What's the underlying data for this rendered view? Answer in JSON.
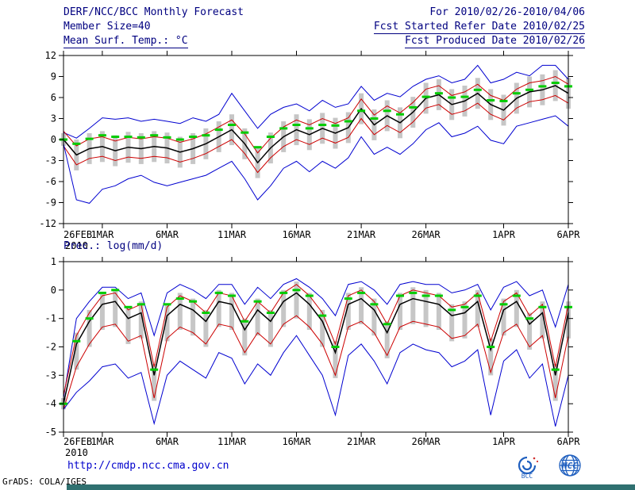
{
  "header": {
    "title": "DERF/NCC/BCC Monthly Forecast",
    "member_size": "Member Size=40",
    "variable_label": "Mean Surf. Temp.: °C",
    "for_range": "For 2010/02/26-2010/04/06",
    "refer_date": "Fcst Started Refer Date 2010/02/25",
    "produced_date": "Fcst Produced Date 2010/02/26"
  },
  "footer": {
    "url": "http://cmdp.ncc.cma.gov.cn",
    "grads_credit": "GrADS: COLA/IGES",
    "logos": [
      "BCC",
      "NCC"
    ]
  },
  "colors": {
    "header_text": "#000080",
    "axis": "#000000",
    "envelope_blue": "#0000d0",
    "band_red": "#cc0000",
    "mean_black": "#000000",
    "reference_green": "#00cc00",
    "bars_gray": "#c6c6c6",
    "url_blue": "#0000cc",
    "strip_teal": "#2f7070",
    "logo_blue": "#1f5fbf"
  },
  "chart_data": [
    {
      "type": "line",
      "title": "Mean Surf. Temp.: °C",
      "ylim": [
        -12,
        12
      ],
      "yticks": [
        -12,
        -9,
        -6,
        -3,
        0,
        3,
        6,
        9,
        12
      ],
      "x_tick_labels": [
        "26FEB",
        "1MAR",
        "6MAR",
        "11MAR",
        "16MAR",
        "21MAR",
        "26MAR",
        "1APR",
        "6APR"
      ],
      "x_tick_indices": [
        0,
        3,
        8,
        13,
        18,
        23,
        28,
        34,
        39
      ],
      "x_year_label": "2010",
      "grid": false,
      "legend": "none",
      "categories": [
        "26FEB",
        "27FEB",
        "28FEB",
        "1MAR",
        "2MAR",
        "3MAR",
        "4MAR",
        "5MAR",
        "6MAR",
        "7MAR",
        "8MAR",
        "9MAR",
        "10MAR",
        "11MAR",
        "12MAR",
        "13MAR",
        "14MAR",
        "15MAR",
        "16MAR",
        "17MAR",
        "18MAR",
        "19MAR",
        "20MAR",
        "21MAR",
        "22MAR",
        "23MAR",
        "24MAR",
        "25MAR",
        "26MAR",
        "27MAR",
        "28MAR",
        "29MAR",
        "30MAR",
        "31MAR",
        "1APR",
        "2APR",
        "3APR",
        "4APR",
        "5APR",
        "6APR"
      ],
      "series": [
        {
          "name": "ensemble-max",
          "color": "#0000d0",
          "style": "line",
          "values": [
            1.0,
            0.2,
            1.6,
            3.1,
            2.9,
            3.1,
            2.6,
            2.9,
            2.6,
            2.3,
            3.1,
            2.6,
            3.6,
            6.6,
            4.1,
            1.6,
            3.6,
            4.6,
            5.1,
            4.1,
            5.6,
            4.6,
            5.1,
            7.6,
            5.6,
            6.6,
            6.1,
            7.6,
            8.6,
            9.1,
            8.1,
            8.6,
            10.6,
            8.1,
            8.6,
            9.6,
            9.1,
            10.6,
            10.6,
            8.6
          ]
        },
        {
          "name": "spread-upper",
          "color": "#cc0000",
          "style": "line",
          "values": [
            1.2,
            -0.9,
            0.1,
            0.4,
            -0.2,
            0.3,
            0.1,
            0.4,
            0.2,
            -0.4,
            0.1,
            0.8,
            1.8,
            2.8,
            0.8,
            -1.9,
            0.2,
            1.8,
            2.8,
            2.1,
            3.0,
            2.3,
            3.1,
            5.8,
            3.5,
            4.8,
            3.8,
            5.3,
            7.2,
            7.7,
            6.3,
            6.8,
            7.9,
            6.3,
            5.6,
            7.2,
            8.1,
            8.4,
            9.0,
            7.9
          ]
        },
        {
          "name": "spread-lower",
          "color": "#cc0000",
          "style": "line",
          "values": [
            -0.9,
            -3.6,
            -2.7,
            -2.4,
            -3.0,
            -2.5,
            -2.7,
            -2.4,
            -2.6,
            -3.2,
            -2.7,
            -2.0,
            -1.0,
            0.0,
            -2.0,
            -4.7,
            -2.6,
            -1.0,
            0.0,
            -0.7,
            0.2,
            -0.5,
            0.3,
            3.0,
            0.7,
            2.0,
            1.0,
            2.5,
            4.5,
            5.0,
            3.6,
            4.1,
            5.2,
            3.6,
            2.8,
            4.5,
            5.4,
            5.7,
            6.3,
            5.2
          ]
        },
        {
          "name": "ensemble-min",
          "color": "#0000d0",
          "style": "line",
          "values": [
            -0.6,
            -8.6,
            -9.1,
            -7.1,
            -6.6,
            -5.6,
            -5.1,
            -6.1,
            -6.6,
            -6.1,
            -5.6,
            -5.1,
            -4.1,
            -3.1,
            -5.6,
            -8.6,
            -6.6,
            -4.1,
            -3.1,
            -4.6,
            -3.1,
            -4.1,
            -2.6,
            0.4,
            -2.1,
            -1.1,
            -2.1,
            -0.6,
            1.4,
            2.4,
            0.4,
            0.9,
            1.9,
            -0.1,
            -0.6,
            1.9,
            2.4,
            2.9,
            3.4,
            1.9
          ]
        },
        {
          "name": "ensemble-mean",
          "color": "#000000",
          "style": "line",
          "values": [
            0.0,
            -2.2,
            -1.3,
            -1.0,
            -1.6,
            -1.1,
            -1.3,
            -1.0,
            -1.2,
            -1.8,
            -1.3,
            -0.6,
            0.4,
            1.4,
            -0.6,
            -3.3,
            -1.2,
            0.4,
            1.4,
            0.7,
            1.6,
            0.9,
            1.7,
            4.4,
            2.1,
            3.4,
            2.4,
            3.9,
            5.9,
            6.4,
            5.0,
            5.5,
            6.6,
            5.0,
            4.2,
            5.9,
            6.8,
            7.1,
            7.7,
            6.6
          ]
        },
        {
          "name": "reference",
          "color": "#00cc00",
          "style": "dash-markers",
          "values": [
            0.0,
            -0.6,
            0.1,
            0.6,
            0.4,
            0.4,
            0.3,
            0.6,
            0.3,
            0.0,
            0.4,
            0.6,
            1.4,
            2.1,
            1.0,
            -1.1,
            0.4,
            1.6,
            2.1,
            1.6,
            2.1,
            2.0,
            2.6,
            4.1,
            3.0,
            4.1,
            3.6,
            4.6,
            6.1,
            6.6,
            6.0,
            6.1,
            7.1,
            5.6,
            5.5,
            6.6,
            7.1,
            7.6,
            8.1,
            7.6
          ]
        }
      ],
      "bars": {
        "name": "ensemble-spread-bars",
        "color": "#c6c6c6",
        "ranges": [
          [
            -0.9,
            0.9
          ],
          [
            -4.4,
            0.0
          ],
          [
            -3.5,
            0.9
          ],
          [
            -3.2,
            1.2
          ],
          [
            -3.8,
            0.6
          ],
          [
            -3.3,
            1.1
          ],
          [
            -3.5,
            0.9
          ],
          [
            -3.2,
            1.2
          ],
          [
            -3.4,
            1.0
          ],
          [
            -4.0,
            0.4
          ],
          [
            -3.5,
            0.9
          ],
          [
            -2.8,
            1.6
          ],
          [
            -1.8,
            2.6
          ],
          [
            -0.8,
            3.6
          ],
          [
            -2.8,
            1.6
          ],
          [
            -5.5,
            -1.1
          ],
          [
            -3.4,
            1.0
          ],
          [
            -1.8,
            2.6
          ],
          [
            -0.8,
            3.6
          ],
          [
            -1.5,
            2.9
          ],
          [
            -0.6,
            3.8
          ],
          [
            -1.3,
            3.1
          ],
          [
            -0.5,
            3.9
          ],
          [
            2.2,
            6.6
          ],
          [
            -0.1,
            4.3
          ],
          [
            1.2,
            5.6
          ],
          [
            0.2,
            4.6
          ],
          [
            1.7,
            6.1
          ],
          [
            3.7,
            8.1
          ],
          [
            4.2,
            8.6
          ],
          [
            2.8,
            7.2
          ],
          [
            3.3,
            7.7
          ],
          [
            4.4,
            8.8
          ],
          [
            2.8,
            7.2
          ],
          [
            2.0,
            6.4
          ],
          [
            3.7,
            8.1
          ],
          [
            4.6,
            9.0
          ],
          [
            4.9,
            9.3
          ],
          [
            5.5,
            9.9
          ],
          [
            4.4,
            8.8
          ]
        ]
      }
    },
    {
      "type": "line",
      "title": "Prec.: log(mm/d)",
      "ylim": [
        -5,
        1
      ],
      "yticks": [
        -5,
        -4,
        -3,
        -2,
        -1,
        0,
        1
      ],
      "x_tick_labels": [
        "26FEB",
        "1MAR",
        "6MAR",
        "11MAR",
        "16MAR",
        "21MAR",
        "26MAR",
        "1APR",
        "6APR"
      ],
      "x_tick_indices": [
        0,
        3,
        8,
        13,
        18,
        23,
        28,
        34,
        39
      ],
      "x_year_label": "2010",
      "grid": false,
      "legend": "none",
      "categories": [
        "26FEB",
        "27FEB",
        "28FEB",
        "1MAR",
        "2MAR",
        "3MAR",
        "4MAR",
        "5MAR",
        "6MAR",
        "7MAR",
        "8MAR",
        "9MAR",
        "10MAR",
        "11MAR",
        "12MAR",
        "13MAR",
        "14MAR",
        "15MAR",
        "16MAR",
        "17MAR",
        "18MAR",
        "19MAR",
        "20MAR",
        "21MAR",
        "22MAR",
        "23MAR",
        "24MAR",
        "25MAR",
        "26MAR",
        "27MAR",
        "28MAR",
        "29MAR",
        "30MAR",
        "31MAR",
        "1APR",
        "2APR",
        "3APR",
        "4APR",
        "5APR",
        "6APR"
      ],
      "series": [
        {
          "name": "ensemble-max",
          "color": "#0000d0",
          "style": "line",
          "values": [
            -3.8,
            -1.0,
            -0.4,
            0.1,
            0.1,
            -0.3,
            -0.1,
            -1.6,
            -0.1,
            0.2,
            0.0,
            -0.3,
            0.2,
            0.2,
            -0.5,
            0.1,
            -0.3,
            0.2,
            0.4,
            0.1,
            -0.3,
            -0.9,
            0.2,
            0.3,
            0.0,
            -0.5,
            0.2,
            0.3,
            0.2,
            0.2,
            -0.1,
            0.0,
            0.2,
            -0.7,
            0.1,
            0.3,
            -0.2,
            0.0,
            -1.3,
            0.2
          ]
        },
        {
          "name": "spread-upper",
          "color": "#cc0000",
          "style": "line",
          "values": [
            -3.7,
            -1.6,
            -0.8,
            -0.2,
            -0.1,
            -0.7,
            -0.5,
            -2.7,
            -0.6,
            -0.2,
            -0.4,
            -0.8,
            -0.1,
            -0.2,
            -1.1,
            -0.4,
            -0.8,
            -0.1,
            0.2,
            -0.2,
            -0.8,
            -1.9,
            -0.2,
            0.0,
            -0.4,
            -1.2,
            -0.2,
            0.0,
            -0.1,
            -0.2,
            -0.6,
            -0.5,
            -0.1,
            -1.8,
            -0.4,
            -0.1,
            -0.9,
            -0.5,
            -2.7,
            -0.5
          ]
        },
        {
          "name": "spread-lower",
          "color": "#cc0000",
          "style": "line",
          "values": [
            -4.2,
            -2.7,
            -1.9,
            -1.3,
            -1.2,
            -1.8,
            -1.6,
            -3.8,
            -1.7,
            -1.3,
            -1.5,
            -1.9,
            -1.2,
            -1.3,
            -2.2,
            -1.5,
            -1.9,
            -1.2,
            -0.9,
            -1.3,
            -1.9,
            -3.0,
            -1.3,
            -1.1,
            -1.5,
            -2.3,
            -1.3,
            -1.1,
            -1.2,
            -1.3,
            -1.7,
            -1.6,
            -1.2,
            -2.9,
            -1.5,
            -1.2,
            -2.0,
            -1.6,
            -3.8,
            -1.6
          ]
        },
        {
          "name": "ensemble-min",
          "color": "#0000d0",
          "style": "line",
          "values": [
            -4.2,
            -3.6,
            -3.2,
            -2.7,
            -2.6,
            -3.1,
            -2.9,
            -4.7,
            -3.0,
            -2.5,
            -2.8,
            -3.1,
            -2.2,
            -2.4,
            -3.3,
            -2.6,
            -3.0,
            -2.2,
            -1.6,
            -2.3,
            -3.0,
            -4.4,
            -2.3,
            -1.9,
            -2.5,
            -3.3,
            -2.2,
            -1.9,
            -2.1,
            -2.2,
            -2.7,
            -2.5,
            -2.1,
            -4.4,
            -2.5,
            -2.1,
            -3.1,
            -2.6,
            -4.8,
            -3.0
          ]
        },
        {
          "name": "ensemble-mean",
          "color": "#000000",
          "style": "line",
          "values": [
            -4.0,
            -1.9,
            -1.1,
            -0.5,
            -0.4,
            -1.0,
            -0.8,
            -3.0,
            -0.9,
            -0.5,
            -0.7,
            -1.1,
            -0.4,
            -0.5,
            -1.4,
            -0.7,
            -1.1,
            -0.4,
            -0.1,
            -0.5,
            -1.1,
            -2.2,
            -0.5,
            -0.3,
            -0.7,
            -1.5,
            -0.5,
            -0.3,
            -0.4,
            -0.5,
            -0.9,
            -0.8,
            -0.4,
            -2.1,
            -0.7,
            -0.4,
            -1.2,
            -0.8,
            -3.0,
            -0.8
          ]
        },
        {
          "name": "reference",
          "color": "#00cc00",
          "style": "dash-markers",
          "values": [
            -4.0,
            -1.8,
            -1.0,
            -0.1,
            0.0,
            -0.6,
            -0.5,
            -2.8,
            -0.5,
            -0.3,
            -0.4,
            -0.8,
            -0.1,
            -0.2,
            -1.1,
            -0.4,
            -0.8,
            -0.1,
            0.0,
            -0.2,
            -0.9,
            -2.0,
            -0.3,
            -0.1,
            -0.5,
            -1.2,
            -0.2,
            -0.1,
            -0.2,
            -0.2,
            -0.7,
            -0.6,
            -0.2,
            -2.0,
            -0.5,
            -0.2,
            -1.0,
            -0.6,
            -2.8,
            -0.6
          ]
        }
      ],
      "bars": {
        "name": "ensemble-spread-bars",
        "color": "#c6c6c6",
        "ranges": [
          [
            -4.2,
            -3.8
          ],
          [
            -2.8,
            -1.5
          ],
          [
            -2.0,
            -0.7
          ],
          [
            -1.4,
            -0.1
          ],
          [
            -1.3,
            0.0
          ],
          [
            -1.9,
            -0.6
          ],
          [
            -1.7,
            -0.4
          ],
          [
            -3.9,
            -2.6
          ],
          [
            -1.8,
            -0.5
          ],
          [
            -1.4,
            -0.1
          ],
          [
            -1.6,
            -0.3
          ],
          [
            -2.0,
            -0.7
          ],
          [
            -1.3,
            0.0
          ],
          [
            -1.4,
            -0.1
          ],
          [
            -2.3,
            -1.0
          ],
          [
            -1.6,
            -0.3
          ],
          [
            -2.0,
            -0.7
          ],
          [
            -1.3,
            0.0
          ],
          [
            -1.0,
            0.3
          ],
          [
            -1.4,
            -0.1
          ],
          [
            -2.0,
            -0.7
          ],
          [
            -3.1,
            -1.8
          ],
          [
            -1.4,
            -0.1
          ],
          [
            -1.2,
            0.1
          ],
          [
            -1.6,
            -0.3
          ],
          [
            -2.4,
            -1.1
          ],
          [
            -1.4,
            -0.1
          ],
          [
            -1.2,
            0.1
          ],
          [
            -1.3,
            0.0
          ],
          [
            -1.4,
            -0.1
          ],
          [
            -1.8,
            -0.5
          ],
          [
            -1.7,
            -0.4
          ],
          [
            -1.3,
            0.0
          ],
          [
            -3.0,
            -1.7
          ],
          [
            -1.6,
            -0.3
          ],
          [
            -1.3,
            0.0
          ],
          [
            -2.1,
            -0.8
          ],
          [
            -1.7,
            -0.4
          ],
          [
            -3.9,
            -2.6
          ],
          [
            -1.7,
            -0.4
          ]
        ]
      }
    }
  ]
}
